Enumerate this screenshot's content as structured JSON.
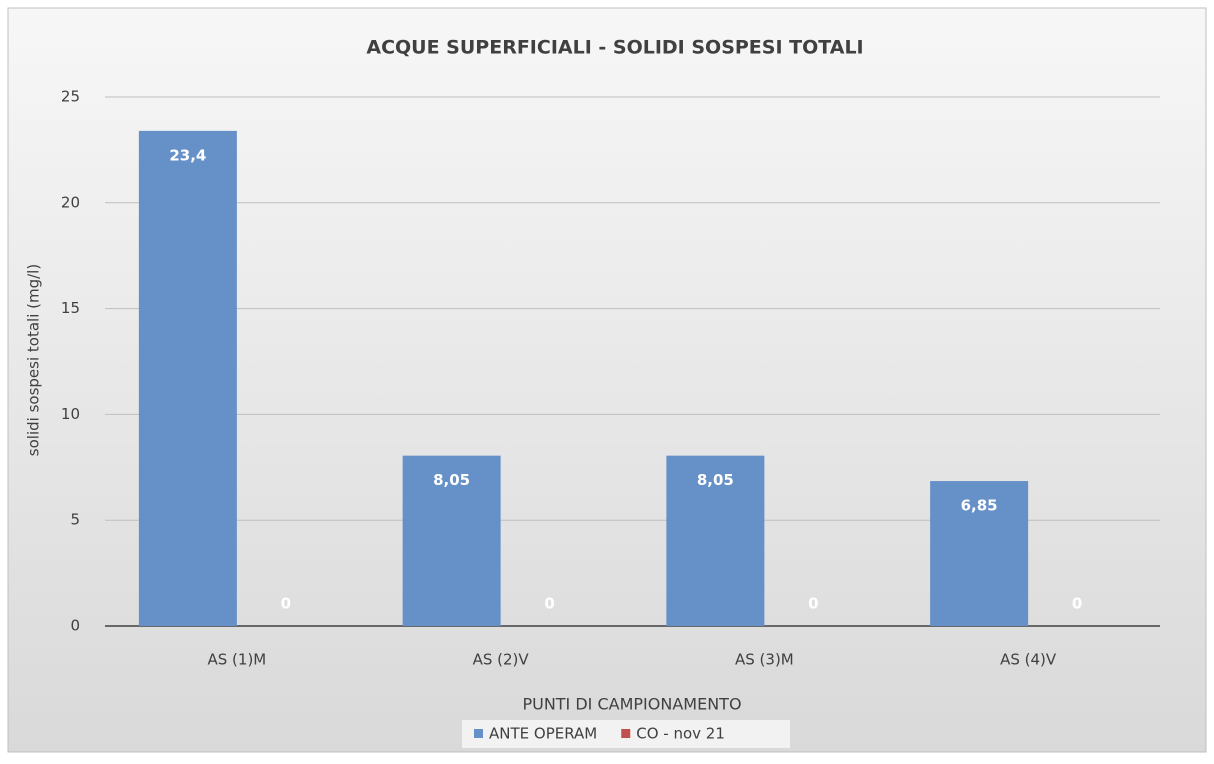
{
  "chart_data": {
    "type": "bar",
    "title": "ACQUE SUPERFICIALI - SOLIDI SOSPESI TOTALI",
    "y_label": "solidi sospesi totali (mg/l)",
    "x_label": "PUNTI DI CAMPIONAMENTO",
    "categories": [
      "AS (1)M",
      "AS (2)V",
      "AS (3)M",
      "AS (4)V"
    ],
    "series": [
      {
        "name": "ANTE OPERAM",
        "color": "#6690c8",
        "values": [
          23.4,
          8.05,
          8.05,
          6.85
        ],
        "value_labels": [
          "23,4",
          "8,05",
          "8,05",
          "6,85"
        ]
      },
      {
        "name": "CO - nov 21",
        "color": "#c0504d",
        "values": [
          0,
          0,
          0,
          0
        ]
      }
    ],
    "ylim": [
      0,
      25
    ],
    "yticks": [
      0,
      5,
      10,
      15,
      20,
      25
    ],
    "grid": true,
    "legend": "bottom"
  }
}
